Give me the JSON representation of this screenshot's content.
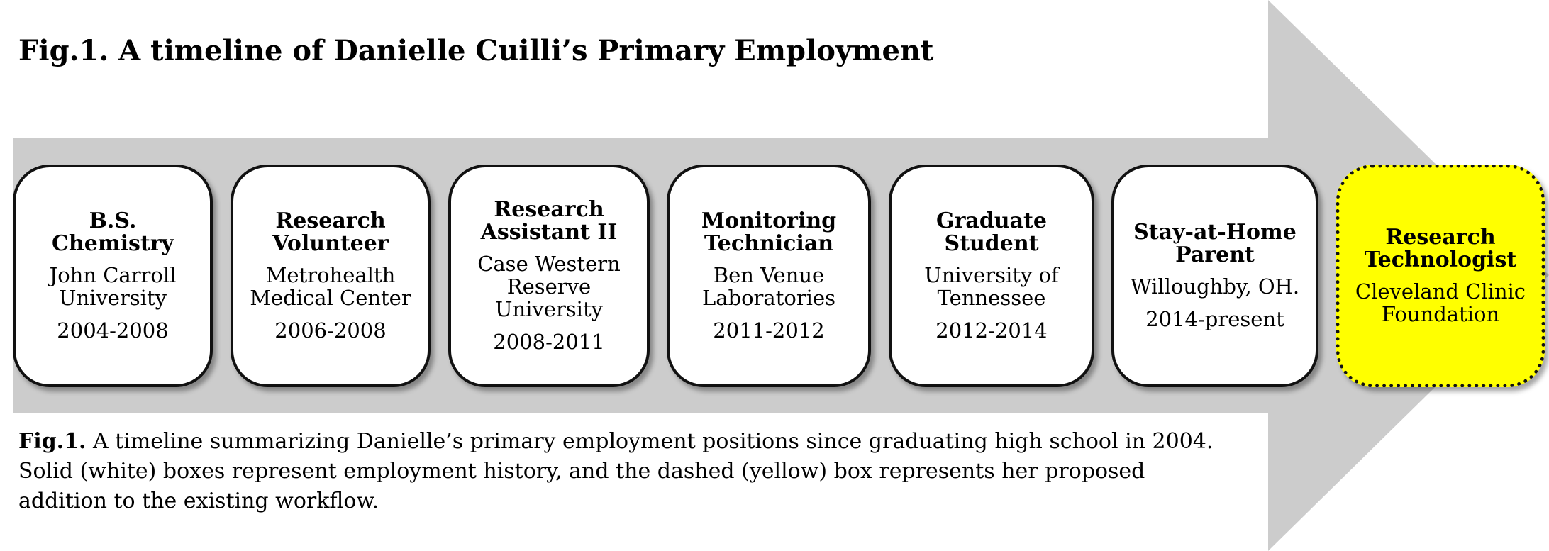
{
  "title": "Fig.1. A timeline of Danielle Cuilli’s Primary Employment",
  "colors": {
    "arrow": "#cccccc",
    "solid_box": "#ffffff",
    "proposed_box": "#ffff00",
    "border": "#111111"
  },
  "timeline": [
    {
      "role": "B.S.\nChemistry",
      "org": "John Carroll\nUniversity",
      "years": "2004-2008",
      "style": "solid"
    },
    {
      "role": "Research\nVolunteer",
      "org": "Metrohealth\nMedical Center",
      "years": "2006-2008",
      "style": "solid"
    },
    {
      "role": "Research\nAssistant II",
      "org": "Case Western\nReserve\nUniversity",
      "years": "2008-2011",
      "style": "solid"
    },
    {
      "role": "Monitoring\nTechnician",
      "org": "Ben Venue\nLaboratories",
      "years": "2011-2012",
      "style": "solid"
    },
    {
      "role": "Graduate\nStudent",
      "org": "University of\nTennessee",
      "years": "2012-2014",
      "style": "solid"
    },
    {
      "role": "Stay-at-Home\nParent",
      "org": "Willoughby, OH.",
      "years": "2014-present",
      "style": "solid"
    },
    {
      "role": "Research\nTechnologist",
      "org": "Cleveland Clinic\nFoundation",
      "years": "",
      "style": "dashed"
    }
  ],
  "caption": {
    "lead": "Fig.1.",
    "text": " A timeline summarizing Danielle’s primary employment positions since graduating high school in 2004.  Solid (white) boxes represent employment history, and the dashed (yellow) box represents her proposed addition to the existing workflow."
  }
}
